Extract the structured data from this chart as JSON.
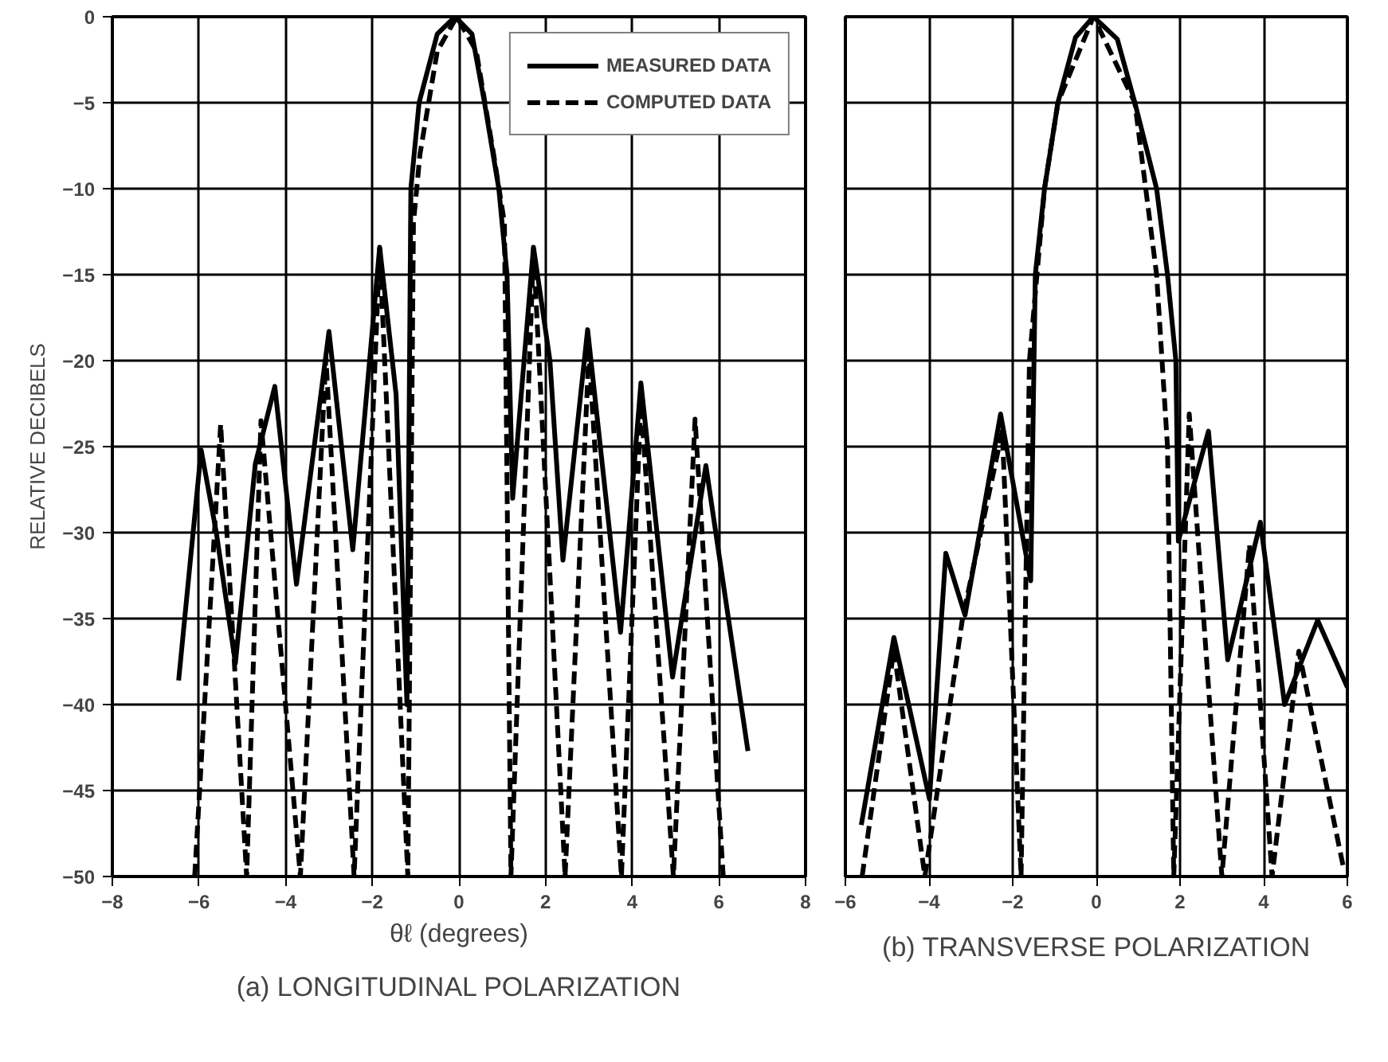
{
  "chart_data": [
    {
      "type": "line",
      "title": "(a) LONGITUDINAL POLARIZATION",
      "xlabel": "θℓ (degrees)",
      "ylabel": "RELATIVE DECIBELS",
      "xlim": [
        -8,
        8
      ],
      "xticks": [
        -8,
        -6,
        -4,
        -2,
        0,
        2,
        4,
        6,
        8
      ],
      "ylim": [
        -50,
        0
      ],
      "yticks": [
        -50,
        -45,
        -40,
        -35,
        -30,
        -25,
        -20,
        -15,
        -10,
        -5,
        0
      ],
      "grid": true,
      "legend": "top right",
      "series": [
        {
          "name": "MEASURED DATA",
          "color": "#000000",
          "line_style": "solid",
          "x": [
            -6.47,
            -5.95,
            -5.6,
            -5.16,
            -4.7,
            -4.25,
            -3.75,
            -3.0,
            -2.45,
            -1.83,
            -1.45,
            -1.2,
            -1.11,
            -0.92,
            -0.5,
            -0.09,
            0.3,
            0.59,
            0.92,
            1.11,
            1.24,
            1.72,
            2.1,
            2.4,
            2.97,
            3.73,
            4.2,
            4.93,
            5.7,
            6.67
          ],
          "values": [
            -38.6,
            -25.2,
            -30,
            -37.6,
            -26,
            -21.5,
            -33,
            -18.3,
            -31,
            -13.4,
            -22,
            -40,
            -10,
            -5,
            -1,
            0,
            -1,
            -5,
            -10,
            -15,
            -28,
            -13.4,
            -20,
            -31.6,
            -18.2,
            -35.8,
            -21.3,
            -38.4,
            -26.1,
            -42.7
          ]
        },
        {
          "name": "COMPUTED DATA",
          "color": "#000000",
          "line_style": "dashed",
          "x": [
            -6.1,
            -5.5,
            -4.9,
            -4.57,
            -3.66,
            -3.07,
            -2.42,
            -1.83,
            -1.18,
            -1.05,
            -0.9,
            -0.5,
            -0.05,
            0.4,
            0.8,
            1.05,
            1.2,
            1.72,
            2.45,
            3.0,
            3.75,
            4.2,
            4.95,
            5.45,
            6.1
          ],
          "values": [
            -50,
            -23.7,
            -50,
            -23.5,
            -50,
            -19.8,
            -50,
            -13.5,
            -50,
            -12,
            -8,
            -2,
            0,
            -2,
            -8,
            -12,
            -50,
            -13.5,
            -50,
            -19.5,
            -50,
            -22.4,
            -50,
            -23.4,
            -50
          ]
        }
      ]
    },
    {
      "type": "line",
      "title": "(b) TRANSVERSE POLARIZATION",
      "xlim": [
        -6,
        6
      ],
      "xticks": [
        -6,
        -4,
        -2,
        0,
        2,
        4,
        6
      ],
      "ylim": [
        -50,
        0
      ],
      "yticks": [
        -50,
        -45,
        -40,
        -35,
        -30,
        -25,
        -20,
        -15,
        -10,
        -5,
        0
      ],
      "grid": true,
      "tick_labels": "x",
      "series": [
        {
          "color": "#000000",
          "line_style": "solid",
          "x": [
            -5.62,
            -4.84,
            -3.99,
            -3.6,
            -3.14,
            -2.29,
            -1.57,
            -1.46,
            -1.24,
            -0.92,
            -0.5,
            -0.07,
            0.5,
            0.92,
            1.44,
            1.7,
            1.9,
            1.96,
            2.68,
            3.14,
            3.92,
            4.5,
            5.29,
            6.0
          ],
          "values": [
            -47,
            -36.1,
            -45.5,
            -31.2,
            -34.8,
            -23.1,
            -32.8,
            -15,
            -10,
            -5,
            -1.2,
            0,
            -1.3,
            -5,
            -10,
            -15,
            -20,
            -30.5,
            -24.1,
            -37.4,
            -29.4,
            -40,
            -35.1,
            -39
          ]
        },
        {
          "color": "#000000",
          "line_style": "dashed",
          "x": [
            -5.6,
            -4.84,
            -4.1,
            -3.2,
            -2.25,
            -1.8,
            -1.6,
            -1.24,
            -0.92,
            -0.07,
            0.92,
            1.44,
            1.7,
            1.85,
            2.22,
            3.0,
            3.66,
            4.2,
            4.84,
            5.9
          ],
          "values": [
            -50,
            -36.8,
            -50,
            -35,
            -24.1,
            -50,
            -20,
            -10,
            -5,
            0,
            -5,
            -15,
            -25,
            -50,
            -23.1,
            -50,
            -30.7,
            -50,
            -36.9,
            -49.4
          ]
        }
      ]
    }
  ]
}
